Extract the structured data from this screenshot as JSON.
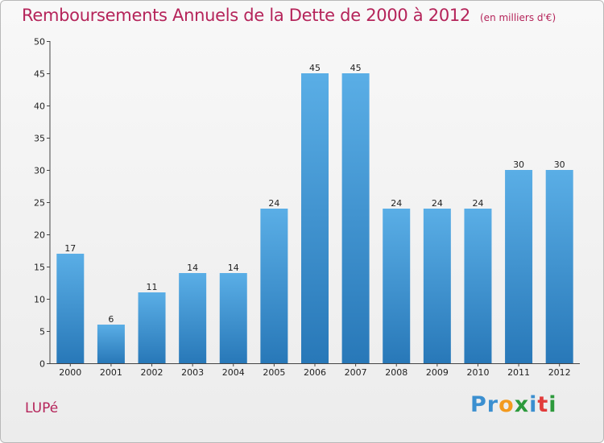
{
  "header": {
    "title": "Remboursements Annuels de la Dette de 2000 à 2012",
    "unit": "(en milliers d'€)"
  },
  "footer": {
    "commune": "LUPé",
    "logo_letters": [
      "P",
      "r",
      "o",
      "x",
      "i",
      "t",
      "i"
    ],
    "logo_colors": [
      "#3b8fd0",
      "#3b8fd0",
      "#f39a1e",
      "#2d9a3c",
      "#3b8fd0",
      "#e23b3b",
      "#2d9a3c"
    ]
  },
  "colors": {
    "bar_top": "#5aaee6",
    "bar_bottom": "#2878b8",
    "title": "#b5245a"
  },
  "chart_data": {
    "type": "bar",
    "title": "Remboursements Annuels de la Dette de 2000 à 2012",
    "subtitle": "(en milliers d'€)",
    "xlabel": "",
    "ylabel": "",
    "categories": [
      "2000",
      "2001",
      "2002",
      "2003",
      "2004",
      "2005",
      "2006",
      "2007",
      "2008",
      "2009",
      "2010",
      "2011",
      "2012"
    ],
    "values": [
      17,
      6,
      11,
      14,
      14,
      24,
      45,
      45,
      24,
      24,
      24,
      30,
      30
    ],
    "ylim": [
      0,
      50
    ],
    "yticks": [
      0,
      5,
      10,
      15,
      20,
      25,
      30,
      35,
      40,
      45,
      50
    ],
    "grid": false,
    "legend": "none"
  }
}
